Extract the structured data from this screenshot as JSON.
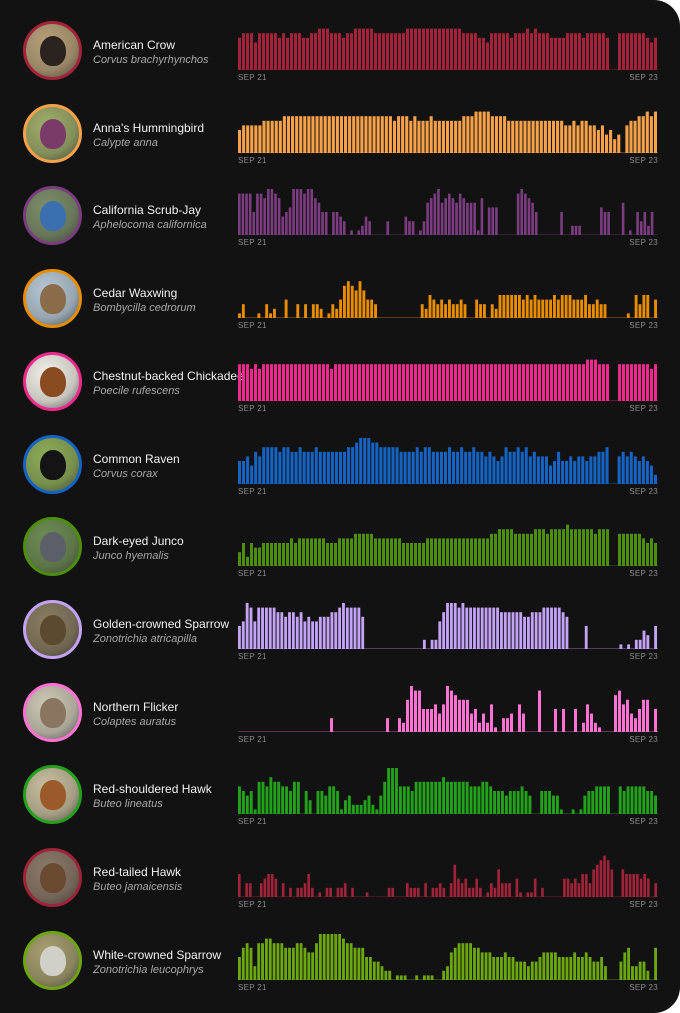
{
  "chart_data": [
    {
      "type": "bar",
      "title": "American Crow",
      "subtitle": "Corvus brachyrhynchos",
      "color": "#a3233a",
      "x_tick_labels": [
        "SEP 21",
        "SEP 23"
      ],
      "ylim": [
        0,
        10
      ],
      "values": [
        7,
        8,
        8,
        8,
        6,
        8,
        8,
        8,
        8,
        8,
        7,
        8,
        7,
        8,
        8,
        8,
        7,
        7,
        8,
        8,
        9,
        9,
        9,
        8,
        8,
        8,
        7,
        8,
        8,
        9,
        9,
        9,
        9,
        9,
        8,
        8,
        8,
        8,
        8,
        8,
        8,
        8,
        9,
        9,
        9,
        9,
        9,
        9,
        9,
        9,
        9,
        9,
        9,
        9,
        9,
        9,
        8,
        8,
        8,
        8,
        7,
        7,
        6,
        8,
        8,
        8,
        8,
        8,
        7,
        8,
        8,
        8,
        9,
        8,
        9,
        8,
        8,
        8,
        7,
        7,
        7,
        7,
        8,
        8,
        8,
        8,
        7,
        8,
        8,
        8,
        8,
        8,
        7,
        0,
        0,
        8,
        8,
        8,
        8,
        8,
        8,
        8,
        7,
        6,
        7
      ]
    },
    {
      "type": "bar",
      "title": "Anna's Hummingbird",
      "subtitle": "Calypte anna",
      "color": "#f7a24b",
      "x_tick_labels": [
        "SEP 21",
        "SEP 23"
      ],
      "ylim": [
        0,
        10
      ],
      "values": [
        5,
        6,
        6,
        6,
        6,
        6,
        7,
        7,
        7,
        7,
        7,
        8,
        8,
        8,
        8,
        8,
        8,
        8,
        8,
        8,
        8,
        8,
        8,
        8,
        8,
        8,
        8,
        8,
        8,
        8,
        8,
        8,
        8,
        8,
        8,
        8,
        8,
        8,
        7,
        8,
        8,
        8,
        7,
        8,
        7,
        7,
        7,
        8,
        7,
        7,
        7,
        7,
        7,
        7,
        7,
        8,
        8,
        8,
        9,
        9,
        9,
        9,
        8,
        8,
        8,
        8,
        7,
        7,
        7,
        7,
        7,
        7,
        7,
        7,
        7,
        7,
        7,
        7,
        7,
        7,
        6,
        6,
        7,
        6,
        7,
        7,
        6,
        6,
        5,
        6,
        4,
        5,
        3,
        4,
        0,
        6,
        7,
        7,
        8,
        8,
        9,
        8,
        9
      ]
    },
    {
      "type": "bar",
      "title": "California Scrub-Jay",
      "subtitle": "Aphelocoma californica",
      "color": "#7b3c80",
      "x_tick_labels": [
        "SEP 21",
        "SEP 23"
      ],
      "ylim": [
        0,
        10
      ],
      "values": [
        9,
        9,
        9,
        9,
        5,
        9,
        9,
        8,
        10,
        10,
        9,
        8,
        4,
        5,
        6,
        10,
        10,
        10,
        9,
        10,
        10,
        8,
        7,
        5,
        5,
        0,
        5,
        5,
        4,
        3,
        0,
        1,
        0,
        1,
        2,
        4,
        3,
        0,
        0,
        0,
        0,
        3,
        0,
        0,
        0,
        0,
        4,
        3,
        3,
        0,
        1,
        3,
        7,
        8,
        9,
        10,
        7,
        8,
        9,
        8,
        7,
        9,
        8,
        7,
        7,
        7,
        1,
        8,
        0,
        6,
        6,
        6,
        0,
        0,
        0,
        0,
        0,
        9,
        10,
        9,
        8,
        7,
        5,
        0,
        0,
        0,
        0,
        0,
        0,
        5,
        0,
        0,
        2,
        2,
        2,
        0,
        0,
        0,
        0,
        0,
        6,
        5,
        5,
        0,
        0,
        0,
        7,
        0,
        1,
        0,
        5,
        3,
        5,
        2,
        5,
        0
      ]
    },
    {
      "type": "bar",
      "title": "Cedar Waxwing",
      "subtitle": "Bombycilla cedrorum",
      "color": "#e88c00",
      "x_tick_labels": [
        "SEP 21",
        "SEP 23"
      ],
      "ylim": [
        0,
        10
      ],
      "values": [
        1,
        3,
        0,
        0,
        0,
        1,
        0,
        3,
        1,
        2,
        0,
        0,
        4,
        0,
        0,
        3,
        0,
        3,
        0,
        3,
        3,
        2,
        0,
        1,
        3,
        2,
        4,
        7,
        8,
        7,
        6,
        8,
        6,
        4,
        4,
        3,
        0,
        0,
        0,
        0,
        0,
        0,
        0,
        0,
        0,
        0,
        0,
        3,
        2,
        5,
        4,
        3,
        4,
        3,
        4,
        3,
        3,
        4,
        3,
        0,
        0,
        4,
        3,
        3,
        0,
        3,
        2,
        5,
        5,
        5,
        5,
        5,
        5,
        4,
        5,
        4,
        5,
        4,
        4,
        4,
        4,
        5,
        4,
        5,
        5,
        5,
        4,
        4,
        4,
        5,
        3,
        3,
        4,
        3,
        3,
        0,
        0,
        0,
        0,
        0,
        1,
        0,
        5,
        3,
        5,
        5,
        0,
        4
      ]
    },
    {
      "type": "bar",
      "title": "Chestnut-backed Chickadee",
      "subtitle": "Poecile rufescens",
      "color": "#ee2a8c",
      "x_tick_labels": [
        "SEP 21",
        "SEP 23"
      ],
      "ylim": [
        0,
        10
      ],
      "values": [
        8,
        8,
        8,
        7,
        8,
        7,
        8,
        8,
        8,
        8,
        8,
        8,
        8,
        8,
        8,
        8,
        8,
        8,
        8,
        8,
        8,
        8,
        8,
        7,
        8,
        8,
        8,
        8,
        8,
        8,
        8,
        8,
        8,
        8,
        8,
        8,
        8,
        8,
        8,
        8,
        8,
        8,
        8,
        8,
        8,
        8,
        8,
        8,
        8,
        8,
        8,
        8,
        8,
        8,
        8,
        8,
        8,
        8,
        8,
        8,
        8,
        8,
        8,
        8,
        8,
        8,
        8,
        8,
        8,
        8,
        8,
        8,
        8,
        8,
        8,
        8,
        8,
        8,
        8,
        8,
        8,
        8,
        8,
        8,
        8,
        8,
        8,
        9,
        9,
        9,
        8,
        8,
        8,
        0,
        0,
        8,
        8,
        8,
        8,
        8,
        8,
        8,
        8,
        7,
        8
      ]
    },
    {
      "type": "bar",
      "title": "Common Raven",
      "subtitle": "Corvus corax",
      "color": "#1563c2",
      "x_tick_labels": [
        "SEP 21",
        "SEP 23"
      ],
      "ylim": [
        0,
        10
      ],
      "values": [
        5,
        5,
        6,
        4,
        7,
        6,
        8,
        8,
        8,
        8,
        7,
        8,
        8,
        7,
        7,
        8,
        7,
        7,
        7,
        8,
        7,
        7,
        7,
        7,
        7,
        7,
        7,
        8,
        8,
        9,
        10,
        10,
        10,
        9,
        9,
        8,
        8,
        8,
        8,
        8,
        7,
        7,
        7,
        7,
        8,
        7,
        8,
        8,
        7,
        7,
        7,
        7,
        8,
        7,
        7,
        8,
        7,
        7,
        8,
        7,
        7,
        6,
        7,
        6,
        5,
        6,
        8,
        7,
        7,
        8,
        7,
        8,
        6,
        7,
        6,
        6,
        6,
        4,
        5,
        7,
        5,
        5,
        6,
        5,
        6,
        6,
        5,
        6,
        6,
        7,
        7,
        8,
        0,
        0,
        6,
        7,
        6,
        7,
        6,
        5,
        6,
        5,
        4,
        2
      ]
    },
    {
      "type": "bar",
      "title": "Dark-eyed Junco",
      "subtitle": "Junco hyemalis",
      "color": "#4d8f0c",
      "x_tick_labels": [
        "SEP 21",
        "SEP 23"
      ],
      "ylim": [
        0,
        10
      ],
      "values": [
        3,
        5,
        2,
        5,
        4,
        4,
        5,
        5,
        5,
        5,
        5,
        5,
        5,
        6,
        5,
        6,
        6,
        6,
        6,
        6,
        6,
        6,
        5,
        5,
        5,
        6,
        6,
        6,
        6,
        7,
        7,
        7,
        7,
        7,
        6,
        6,
        6,
        6,
        6,
        6,
        6,
        5,
        5,
        5,
        5,
        5,
        5,
        6,
        6,
        6,
        6,
        6,
        6,
        6,
        6,
        6,
        6,
        6,
        6,
        6,
        6,
        6,
        6,
        7,
        7,
        8,
        8,
        8,
        8,
        7,
        7,
        7,
        7,
        7,
        8,
        8,
        8,
        7,
        8,
        8,
        8,
        8,
        9,
        8,
        8,
        8,
        8,
        8,
        8,
        7,
        8,
        8,
        8,
        0,
        0,
        7,
        7,
        7,
        7,
        7,
        7,
        6,
        5,
        6,
        5
      ]
    },
    {
      "type": "bar",
      "title": "Golden-crowned Sparrow",
      "subtitle": "Zonotrichia atricapilla",
      "color": "#c4a3f7",
      "x_tick_labels": [
        "SEP 21",
        "SEP 23"
      ],
      "ylim": [
        0,
        10
      ],
      "values": [
        5,
        6,
        10,
        9,
        6,
        9,
        9,
        9,
        9,
        9,
        8,
        8,
        7,
        8,
        8,
        7,
        8,
        6,
        7,
        6,
        6,
        7,
        7,
        7,
        8,
        8,
        9,
        10,
        9,
        9,
        9,
        9,
        7,
        0,
        0,
        0,
        0,
        0,
        0,
        0,
        0,
        0,
        0,
        0,
        0,
        0,
        0,
        0,
        2,
        0,
        2,
        2,
        6,
        8,
        10,
        10,
        10,
        9,
        10,
        9,
        9,
        9,
        9,
        9,
        9,
        9,
        9,
        9,
        8,
        8,
        8,
        8,
        8,
        8,
        7,
        7,
        8,
        8,
        8,
        9,
        9,
        9,
        9,
        9,
        8,
        7,
        0,
        0,
        0,
        0,
        5,
        0,
        0,
        0,
        0,
        0,
        0,
        0,
        0,
        1,
        0,
        1,
        0,
        2,
        2,
        4,
        3,
        0,
        5
      ]
    },
    {
      "type": "bar",
      "title": "Northern Flicker",
      "subtitle": "Colaptes auratus",
      "color": "#ff72d4",
      "x_tick_labels": [
        "SEP 21",
        "SEP 23"
      ],
      "ylim": [
        0,
        10
      ],
      "values": [
        0,
        0,
        0,
        0,
        0,
        0,
        0,
        0,
        0,
        0,
        0,
        0,
        0,
        0,
        0,
        0,
        0,
        0,
        0,
        0,
        0,
        0,
        0,
        3,
        0,
        0,
        0,
        0,
        0,
        0,
        0,
        0,
        0,
        0,
        0,
        0,
        0,
        3,
        0,
        0,
        3,
        2,
        7,
        10,
        9,
        9,
        5,
        5,
        5,
        6,
        4,
        6,
        10,
        9,
        8,
        7,
        7,
        7,
        4,
        5,
        2,
        4,
        2,
        6,
        1,
        0,
        3,
        3,
        4,
        0,
        6,
        4,
        0,
        0,
        0,
        9,
        0,
        0,
        0,
        5,
        0,
        5,
        0,
        0,
        5,
        0,
        2,
        6,
        4,
        2,
        1,
        0,
        0,
        0,
        8,
        9,
        6,
        7,
        4,
        3,
        5,
        7,
        7,
        0,
        5
      ]
    },
    {
      "type": "bar",
      "title": "Red-shouldered Hawk",
      "subtitle": "Buteo lineatus",
      "color": "#23a11b",
      "x_tick_labels": [
        "SEP 21",
        "SEP 23"
      ],
      "ylim": [
        0,
        10
      ],
      "values": [
        6,
        5,
        4,
        5,
        1,
        7,
        7,
        6,
        8,
        7,
        7,
        6,
        6,
        5,
        7,
        7,
        0,
        5,
        3,
        0,
        5,
        5,
        4,
        6,
        6,
        5,
        1,
        3,
        4,
        2,
        2,
        2,
        3,
        4,
        2,
        1,
        4,
        7,
        10,
        10,
        10,
        6,
        6,
        6,
        5,
        7,
        7,
        7,
        7,
        7,
        7,
        7,
        8,
        7,
        7,
        7,
        7,
        7,
        7,
        6,
        6,
        6,
        7,
        7,
        6,
        5,
        5,
        5,
        4,
        5,
        5,
        5,
        6,
        5,
        4,
        0,
        0,
        5,
        5,
        5,
        4,
        4,
        1,
        0,
        0,
        1,
        0,
        1,
        4,
        5,
        5,
        6,
        6,
        6,
        6,
        0,
        0,
        6,
        5,
        6,
        6,
        6,
        6,
        6,
        5,
        5,
        4
      ]
    },
    {
      "type": "bar",
      "title": "Red-tailed Hawk",
      "subtitle": "Buteo jamaicensis",
      "color": "#a02339",
      "x_tick_labels": [
        "SEP 21",
        "SEP 23"
      ],
      "ylim": [
        0,
        10
      ],
      "values": [
        5,
        0,
        3,
        3,
        0,
        0,
        3,
        4,
        5,
        5,
        4,
        0,
        3,
        0,
        2,
        0,
        2,
        2,
        3,
        5,
        2,
        0,
        1,
        0,
        2,
        2,
        0,
        2,
        2,
        3,
        0,
        2,
        0,
        0,
        0,
        1,
        0,
        0,
        0,
        0,
        0,
        2,
        2,
        0,
        0,
        0,
        3,
        2,
        2,
        2,
        0,
        3,
        0,
        2,
        2,
        3,
        2,
        0,
        3,
        7,
        4,
        3,
        4,
        2,
        2,
        4,
        2,
        0,
        1,
        3,
        2,
        6,
        3,
        3,
        3,
        0,
        4,
        1,
        0,
        1,
        1,
        4,
        0,
        2,
        0,
        0,
        0,
        0,
        0,
        4,
        4,
        3,
        4,
        3,
        5,
        5,
        3,
        6,
        7,
        8,
        9,
        8,
        6,
        0,
        0,
        6,
        5,
        5,
        5,
        5,
        4,
        5,
        4,
        0,
        3
      ]
    },
    {
      "type": "bar",
      "title": "White-crowned Sparrow",
      "subtitle": "Zonotrichia leucophrys",
      "color": "#6ca710",
      "x_tick_labels": [
        "SEP 21",
        "SEP 23"
      ],
      "ylim": [
        0,
        10
      ],
      "values": [
        5,
        7,
        8,
        7,
        3,
        8,
        8,
        9,
        9,
        8,
        8,
        8,
        7,
        7,
        7,
        8,
        8,
        7,
        6,
        6,
        8,
        10,
        10,
        10,
        10,
        10,
        10,
        9,
        8,
        8,
        7,
        7,
        7,
        5,
        5,
        4,
        4,
        3,
        2,
        2,
        0,
        1,
        1,
        1,
        0,
        0,
        1,
        0,
        1,
        1,
        1,
        0,
        0,
        2,
        3,
        6,
        7,
        8,
        8,
        8,
        8,
        7,
        7,
        6,
        6,
        6,
        5,
        5,
        5,
        6,
        5,
        5,
        4,
        4,
        4,
        3,
        4,
        4,
        5,
        6,
        6,
        6,
        6,
        5,
        5,
        5,
        5,
        6,
        5,
        5,
        6,
        5,
        4,
        4,
        5,
        3,
        0,
        0,
        0,
        4,
        6,
        7,
        3,
        3,
        4,
        4,
        2,
        0,
        7
      ]
    }
  ]
}
